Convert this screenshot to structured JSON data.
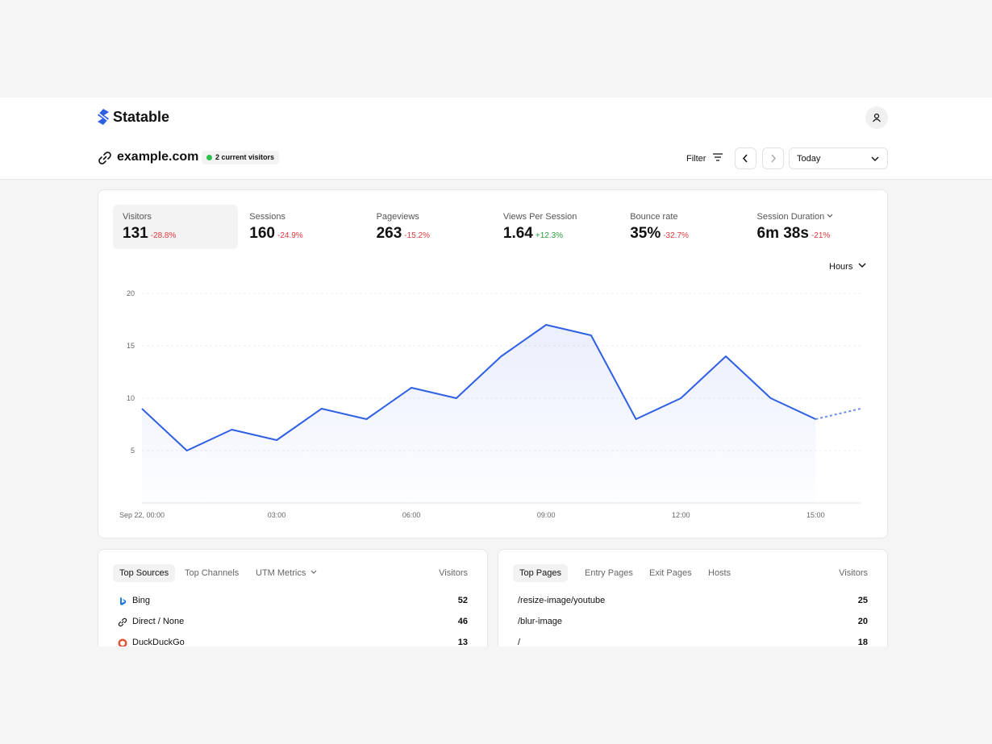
{
  "header": {
    "brand": "Statable",
    "site": "example.com",
    "live": "2 current visitors",
    "filter": "Filter",
    "range": "Today"
  },
  "metrics": [
    {
      "label": "Visitors",
      "value": "131",
      "change": "-28.8%"
    },
    {
      "label": "Sessions",
      "value": "160",
      "change": "-24.9%"
    },
    {
      "label": "Pageviews",
      "value": "263",
      "change": "-15.2%"
    },
    {
      "label": "Views Per Session",
      "value": "1.64",
      "change": "+12.3%"
    },
    {
      "label": "Bounce rate",
      "value": "35%",
      "change": "-32.7%"
    },
    {
      "label": "Session Duration",
      "value": "6m 38s",
      "change": "-21%"
    }
  ],
  "chart_data": {
    "type": "line",
    "interval": "Hours",
    "x": [
      0,
      1,
      2,
      3,
      4,
      5,
      6,
      7,
      8,
      9,
      10,
      11,
      12,
      13,
      14,
      15,
      16
    ],
    "values": [
      9,
      5,
      7,
      6,
      9,
      8,
      11,
      10,
      14,
      17,
      16,
      8,
      10,
      14,
      10,
      8,
      9
    ],
    "color": "#2f5fe3",
    "dashed_last_segment": true,
    "xlim": [
      0,
      16
    ],
    "xticks": [
      {
        "value": 0,
        "label": "Sep 22, 00:00"
      },
      {
        "value": 3,
        "label": "03:00"
      },
      {
        "value": 6,
        "label": "06:00"
      },
      {
        "value": 9,
        "label": "09:00"
      },
      {
        "value": 12,
        "label": "12:00"
      },
      {
        "value": 15,
        "label": "15:00"
      }
    ],
    "ylim": [
      0,
      20
    ],
    "yticks": [
      5,
      10,
      15,
      20
    ],
    "grid": true
  },
  "sources": {
    "tabs": [
      "Top Sources",
      "Top Channels",
      "UTM Metrics"
    ],
    "column": "Visitors",
    "rows": [
      {
        "name": "Bing",
        "value": "52"
      },
      {
        "name": "Direct / None",
        "value": "46"
      },
      {
        "name": "DuckDuckGo",
        "value": "13"
      }
    ]
  },
  "pages": {
    "tabs": [
      "Top Pages",
      "Entry Pages",
      "Exit Pages",
      "Hosts"
    ],
    "column": "Visitors",
    "rows": [
      {
        "name": "/resize-image/youtube",
        "value": "25"
      },
      {
        "name": "/blur-image",
        "value": "20"
      },
      {
        "name": "/",
        "value": "18"
      }
    ]
  }
}
